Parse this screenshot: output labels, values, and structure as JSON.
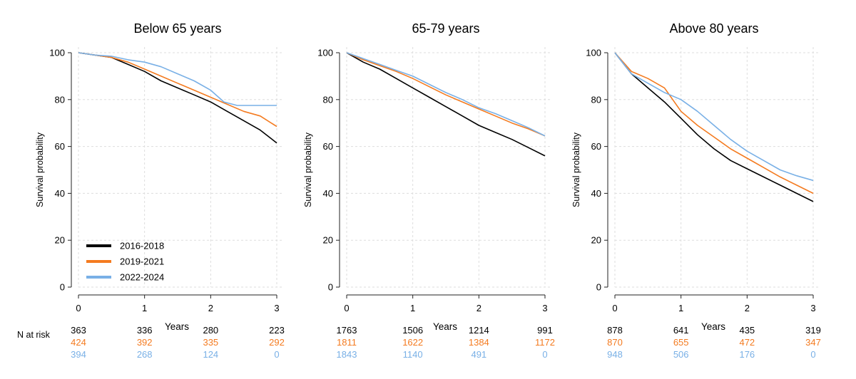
{
  "colors": {
    "2016-2018": "#000000",
    "2019-2021": "#f47b20",
    "2022-2024": "#79b0e6"
  },
  "n_at_risk_label": "N at risk",
  "chart_data": [
    {
      "type": "line",
      "title": "Below 65 years",
      "xlabel": "Years",
      "ylabel": "Survival probability",
      "xlim": [
        0,
        3
      ],
      "ylim": [
        0,
        100
      ],
      "xticks": [
        0,
        1,
        2,
        3
      ],
      "yticks": [
        0,
        20,
        40,
        60,
        80,
        100
      ],
      "grid": true,
      "legend": "bottom-left",
      "series": [
        {
          "name": "2016-2018",
          "x": [
            0,
            0.25,
            0.5,
            0.75,
            1,
            1.25,
            1.5,
            1.75,
            2,
            2.25,
            2.5,
            2.75,
            3
          ],
          "y": [
            100,
            99,
            98,
            95,
            92,
            88,
            85,
            82,
            79,
            75,
            71,
            67,
            61.5
          ]
        },
        {
          "name": "2019-2021",
          "x": [
            0,
            0.25,
            0.5,
            0.75,
            1,
            1.25,
            1.5,
            1.75,
            2,
            2.25,
            2.5,
            2.75,
            3
          ],
          "y": [
            100,
            99,
            98,
            96,
            93,
            90,
            87,
            84,
            81,
            78,
            75,
            73,
            68.5
          ]
        },
        {
          "name": "2022-2024",
          "x": [
            0,
            0.25,
            0.5,
            0.75,
            1,
            1.25,
            1.5,
            1.75,
            2,
            2.2,
            2.4,
            2.6,
            2.8,
            3
          ],
          "y": [
            100,
            99,
            98.5,
            97,
            96,
            94,
            91,
            88,
            84,
            79,
            77.5,
            77.5,
            77.5,
            77.5
          ]
        }
      ],
      "n_at_risk": [
        {
          "name": "2016-2018",
          "values": [
            "363",
            "336",
            "280",
            "223"
          ]
        },
        {
          "name": "2019-2021",
          "values": [
            "424",
            "392",
            "335",
            "292"
          ]
        },
        {
          "name": "2022-2024",
          "values": [
            "394",
            "268",
            "124",
            "0"
          ]
        }
      ]
    },
    {
      "type": "line",
      "title": "65-79 years",
      "xlabel": "Years",
      "ylabel": "Survival probability",
      "xlim": [
        0,
        3
      ],
      "ylim": [
        0,
        100
      ],
      "xticks": [
        0,
        1,
        2,
        3
      ],
      "yticks": [
        0,
        20,
        40,
        60,
        80,
        100
      ],
      "grid": true,
      "series": [
        {
          "name": "2016-2018",
          "x": [
            0,
            0.25,
            0.5,
            0.75,
            1,
            1.25,
            1.5,
            1.75,
            2,
            2.25,
            2.5,
            2.75,
            3
          ],
          "y": [
            100,
            96,
            93,
            89,
            85,
            81,
            77,
            73,
            69,
            66,
            63,
            59.5,
            56
          ]
        },
        {
          "name": "2019-2021",
          "x": [
            0,
            0.25,
            0.5,
            0.75,
            1,
            1.25,
            1.5,
            1.75,
            2,
            2.25,
            2.5,
            2.75,
            3
          ],
          "y": [
            100,
            97,
            94.5,
            92,
            89,
            85.5,
            82,
            79,
            76,
            73,
            70,
            67.5,
            64.5
          ]
        },
        {
          "name": "2022-2024",
          "x": [
            0,
            0.25,
            0.5,
            0.75,
            1,
            1.25,
            1.5,
            1.75,
            2,
            2.25,
            2.5,
            2.75,
            3
          ],
          "y": [
            100,
            97.5,
            95,
            92.5,
            90,
            86.5,
            83,
            80,
            76.5,
            74,
            71,
            68,
            64.5
          ]
        }
      ],
      "n_at_risk": [
        {
          "name": "2016-2018",
          "values": [
            "1763",
            "1506",
            "1214",
            "991"
          ]
        },
        {
          "name": "2019-2021",
          "values": [
            "1811",
            "1622",
            "1384",
            "1172"
          ]
        },
        {
          "name": "2022-2024",
          "values": [
            "1843",
            "1140",
            "491",
            "0"
          ]
        }
      ]
    },
    {
      "type": "line",
      "title": "Above 80 years",
      "xlabel": "Years",
      "ylabel": "Survival probability",
      "xlim": [
        0,
        3
      ],
      "ylim": [
        0,
        100
      ],
      "xticks": [
        0,
        1,
        2,
        3
      ],
      "yticks": [
        0,
        20,
        40,
        60,
        80,
        100
      ],
      "grid": true,
      "series": [
        {
          "name": "2016-2018",
          "x": [
            0,
            0.25,
            0.5,
            0.75,
            1,
            1.25,
            1.5,
            1.75,
            2,
            2.25,
            2.5,
            2.75,
            3
          ],
          "y": [
            100,
            91,
            85,
            79,
            72,
            65,
            59,
            54,
            50.5,
            47,
            43.5,
            40,
            36.5
          ]
        },
        {
          "name": "2019-2021",
          "x": [
            0,
            0.25,
            0.5,
            0.75,
            1,
            1.25,
            1.5,
            1.75,
            2,
            2.25,
            2.5,
            2.75,
            3
          ],
          "y": [
            100,
            92,
            89,
            85,
            75,
            69,
            64,
            59,
            55,
            51,
            47,
            43.5,
            40
          ]
        },
        {
          "name": "2022-2024",
          "x": [
            0,
            0.25,
            0.5,
            0.75,
            1,
            1.25,
            1.5,
            1.75,
            2,
            2.25,
            2.5,
            2.75,
            3
          ],
          "y": [
            100,
            91,
            87,
            83,
            80,
            75,
            69,
            63,
            58,
            54,
            50,
            47.5,
            45.5
          ]
        }
      ],
      "n_at_risk": [
        {
          "name": "2016-2018",
          "values": [
            "878",
            "641",
            "435",
            "319"
          ]
        },
        {
          "name": "2019-2021",
          "values": [
            "870",
            "655",
            "472",
            "347"
          ]
        },
        {
          "name": "2022-2024",
          "values": [
            "948",
            "506",
            "176",
            "0"
          ]
        }
      ]
    }
  ]
}
